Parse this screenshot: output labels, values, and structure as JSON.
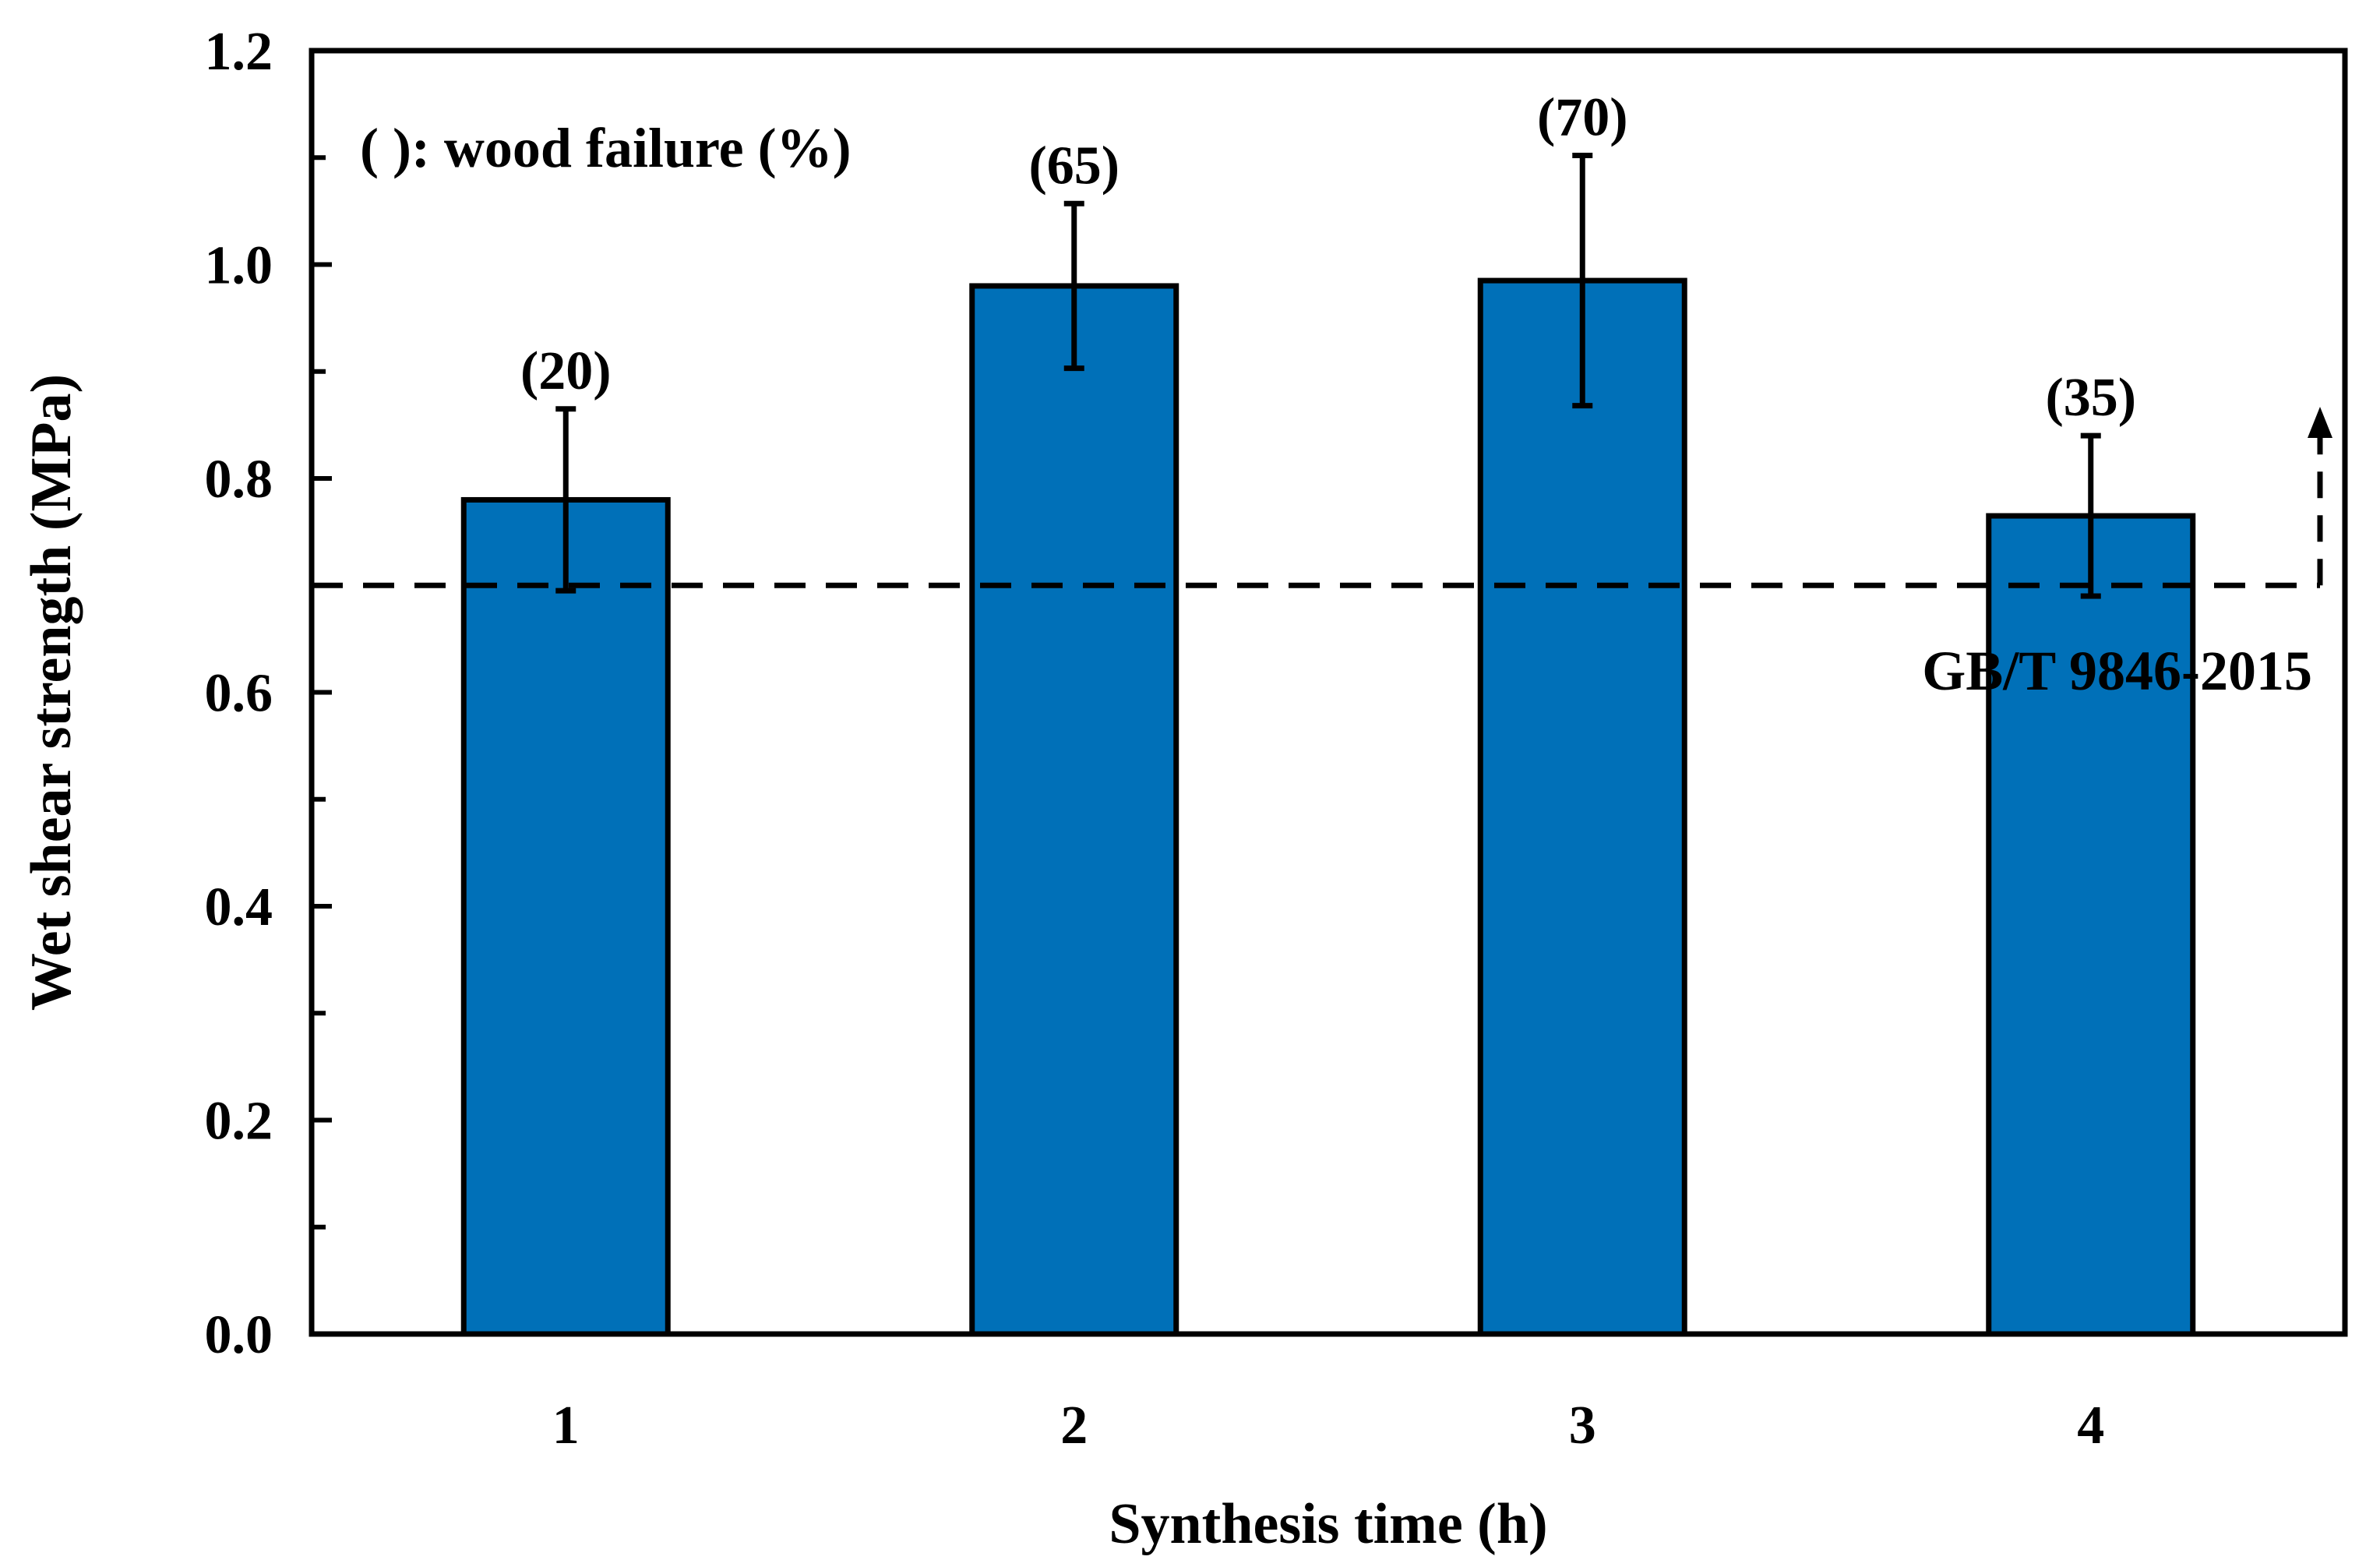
{
  "chart_data": {
    "type": "bar",
    "xlabel": "Synthesis time (h)",
    "ylabel": "Wet shear strength (MPa)",
    "ylim": [
      0,
      1.2
    ],
    "yticks": [
      "0.0",
      "0.2",
      "0.4",
      "0.6",
      "0.8",
      "1.0",
      "1.2"
    ],
    "categories": [
      "1",
      "2",
      "3",
      "4"
    ],
    "values": [
      0.78,
      0.98,
      0.985,
      0.765
    ],
    "errors": [
      0.085,
      0.077,
      0.117,
      0.075
    ],
    "wood_failure_labels": [
      "(20)",
      "(65)",
      "(70)",
      "(35)"
    ],
    "bar_color": "#0070B8",
    "reference_line": {
      "value": 0.7,
      "label": "GB/T 9846-2015",
      "style": "dashed"
    },
    "annotation": "( ): wood failure (%)",
    "grid": false
  }
}
